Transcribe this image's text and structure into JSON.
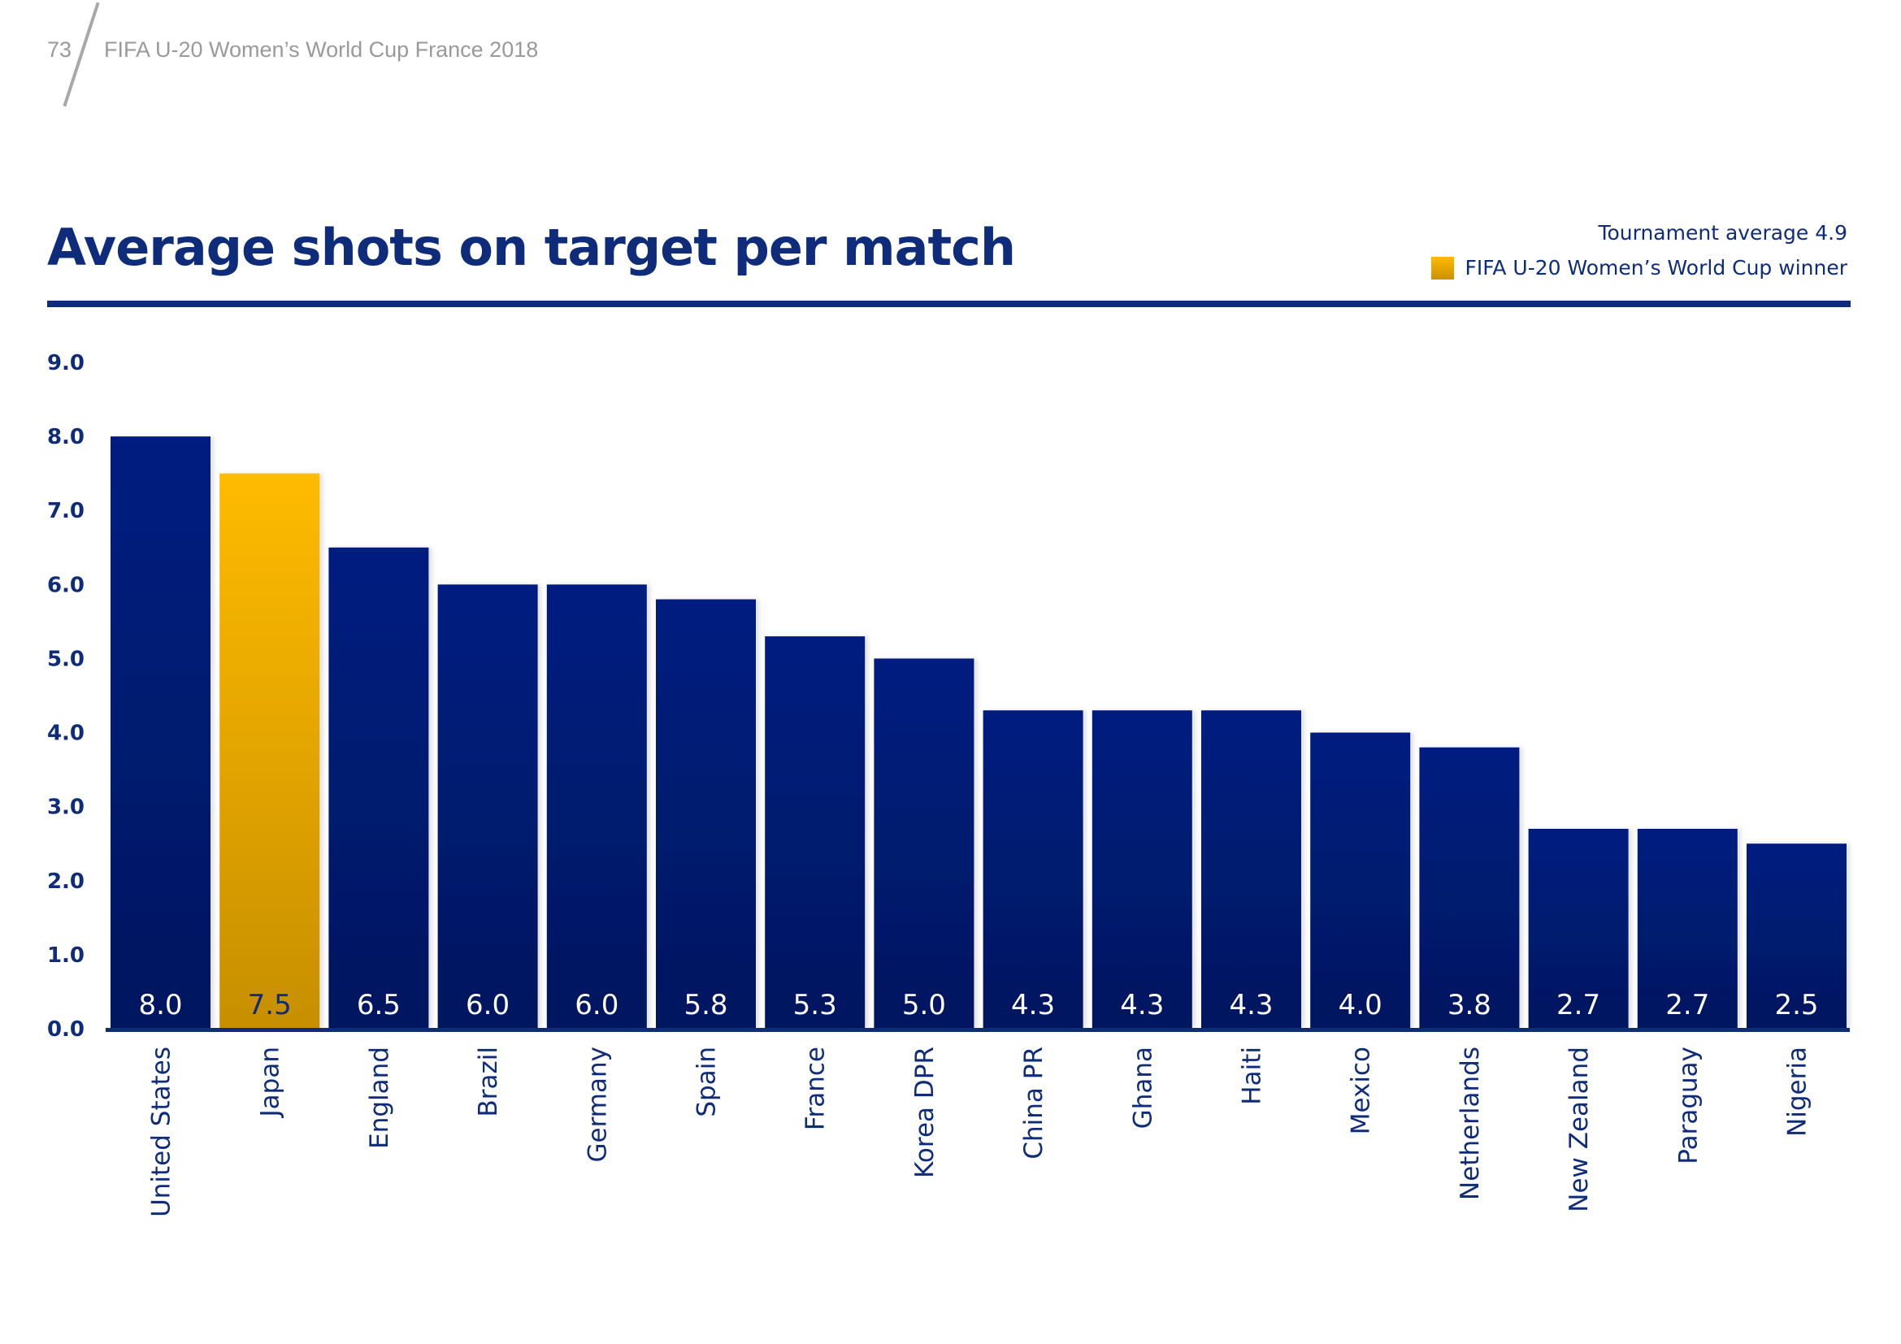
{
  "page_header": {
    "page_number": "73",
    "document_title": "FIFA U-20 Women’s World Cup France 2018"
  },
  "legend": {
    "tournament_average_label": "Tournament average 4.9",
    "winner_label": "FIFA U-20 Women’s World Cup winner"
  },
  "colors": {
    "bar": "#001e80",
    "bar_dark": "#00175f",
    "winner": "#ffbb00",
    "winner_dark": "#c78f00",
    "text": "#0e2c7a"
  },
  "chart_data": {
    "type": "bar",
    "title": "Average shots on target per match",
    "xlabel": "",
    "ylabel": "",
    "ylim": [
      0,
      9
    ],
    "yticks": [
      "0.0",
      "1.0",
      "2.0",
      "3.0",
      "4.0",
      "5.0",
      "6.0",
      "7.0",
      "8.0",
      "9.0"
    ],
    "grid": false,
    "legend_position": "top-right",
    "tournament_average": 4.9,
    "highlight_category": "Japan",
    "categories": [
      "United States",
      "Japan",
      "England",
      "Brazil",
      "Germany",
      "Spain",
      "France",
      "Korea DPR",
      "China PR",
      "Ghana",
      "Haiti",
      "Mexico",
      "Netherlands",
      "New Zealand",
      "Paraguay",
      "Nigeria"
    ],
    "values": [
      8.0,
      7.5,
      6.5,
      6.0,
      6.0,
      5.8,
      5.3,
      5.0,
      4.3,
      4.3,
      4.3,
      4.0,
      3.8,
      2.7,
      2.7,
      2.5
    ],
    "value_labels": [
      "8.0",
      "7.5",
      "6.5",
      "6.0",
      "6.0",
      "5.8",
      "5.3",
      "5.0",
      "4.3",
      "4.3",
      "4.3",
      "4.0",
      "3.8",
      "2.7",
      "2.7",
      "2.5"
    ]
  }
}
